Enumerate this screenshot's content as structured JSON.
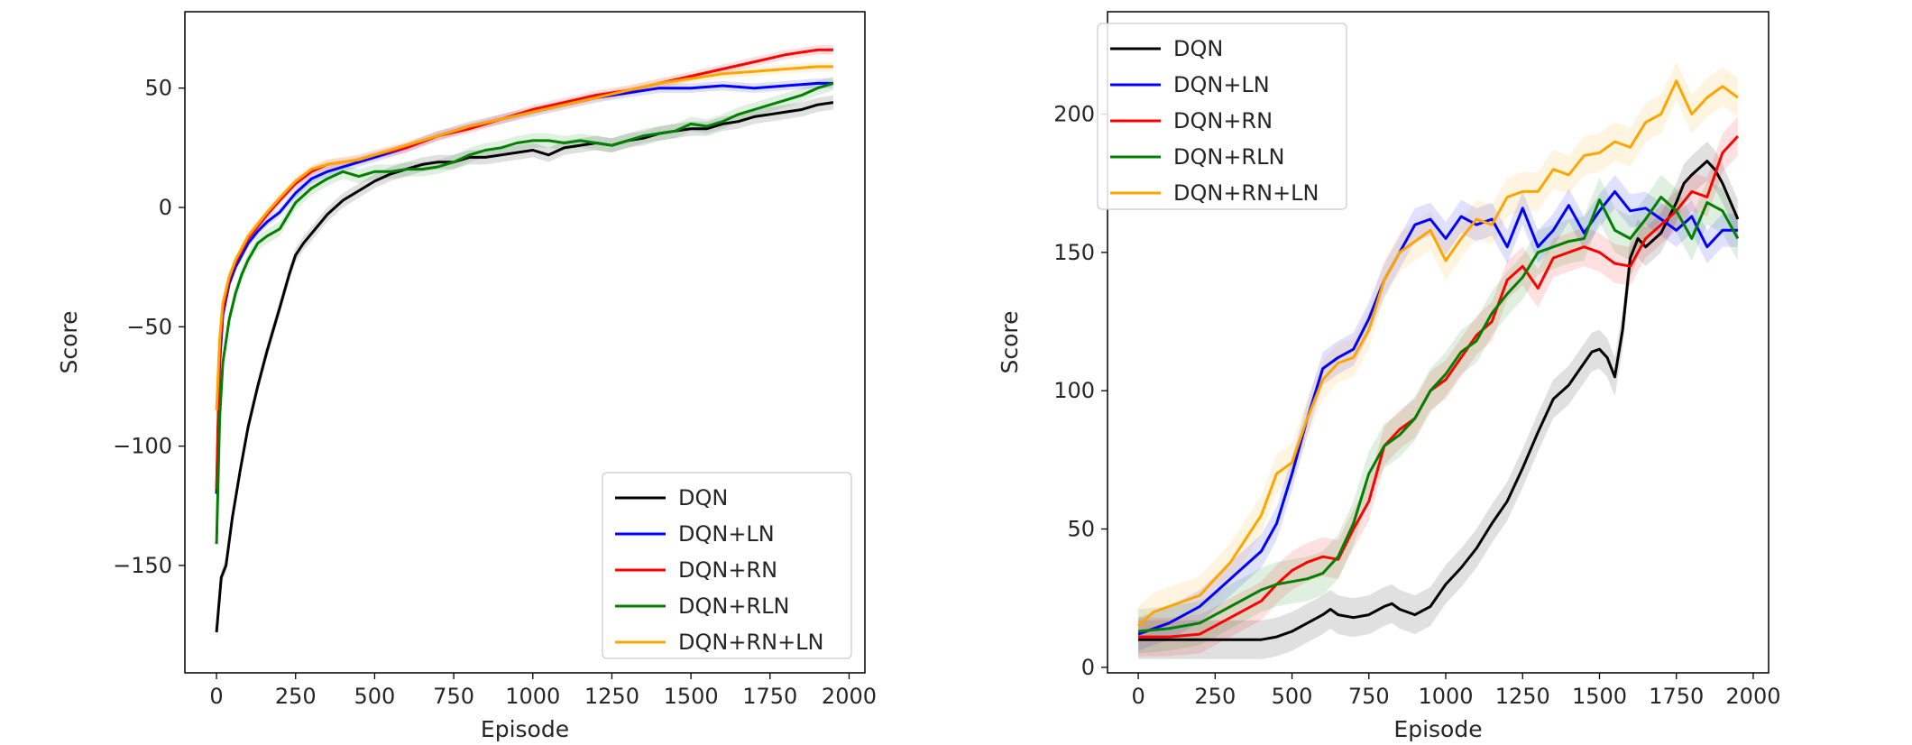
{
  "chart_data": [
    {
      "type": "line",
      "xlabel": "Episode",
      "ylabel": "Score",
      "xlim": [
        -100,
        2050
      ],
      "ylim": [
        -195,
        82
      ],
      "xticks": [
        0,
        250,
        500,
        750,
        1000,
        1250,
        1500,
        1750,
        2000
      ],
      "yticks": [
        -150,
        -100,
        -50,
        0,
        50
      ],
      "xtick_labels": [
        "0",
        "250",
        "500",
        "750",
        "1000",
        "1250",
        "1500",
        "1750",
        "2000"
      ],
      "ytick_labels": [
        "−150",
        "−100",
        "−50",
        "0",
        "50"
      ],
      "legend": {
        "position": "lower-right",
        "entries": [
          "DQN",
          "DQN+LN",
          "DQN+RN",
          "DQN+RLN",
          "DQN+RN+LN"
        ]
      },
      "grid": false,
      "series": [
        {
          "name": "DQN",
          "color": "#000000",
          "band": 3,
          "x": [
            0,
            15,
            30,
            50,
            75,
            100,
            130,
            160,
            200,
            230,
            250,
            275,
            300,
            350,
            400,
            450,
            500,
            550,
            600,
            650,
            700,
            750,
            800,
            850,
            900,
            950,
            1000,
            1050,
            1100,
            1150,
            1200,
            1250,
            1300,
            1350,
            1400,
            1450,
            1500,
            1550,
            1600,
            1650,
            1700,
            1750,
            1800,
            1850,
            1900,
            1950
          ],
          "y": [
            -178,
            -155,
            -150,
            -130,
            -110,
            -92,
            -75,
            -60,
            -42,
            -28,
            -20,
            -15,
            -11,
            -3,
            3,
            7,
            11,
            14,
            16,
            18,
            19,
            19,
            21,
            21,
            22,
            23,
            24,
            22,
            25,
            26,
            27,
            26,
            28,
            29,
            31,
            32,
            33,
            33,
            35,
            36,
            38,
            39,
            40,
            41,
            43,
            44
          ]
        },
        {
          "name": "DQN+LN",
          "color": "#0000ff",
          "band": 2,
          "x": [
            0,
            10,
            20,
            40,
            60,
            80,
            100,
            130,
            160,
            200,
            250,
            300,
            350,
            400,
            450,
            500,
            600,
            700,
            800,
            900,
            1000,
            1100,
            1200,
            1300,
            1400,
            1500,
            1600,
            1700,
            1800,
            1900,
            1950
          ],
          "y": [
            -120,
            -65,
            -45,
            -32,
            -25,
            -20,
            -15,
            -10,
            -6,
            -2,
            6,
            12,
            15,
            17,
            19,
            21,
            25,
            30,
            34,
            37,
            40,
            43,
            46,
            48,
            50,
            50,
            51,
            50,
            51,
            52,
            52
          ]
        },
        {
          "name": "DQN+RN",
          "color": "#ff0000",
          "band": 2,
          "x": [
            0,
            10,
            20,
            40,
            60,
            80,
            100,
            130,
            160,
            200,
            250,
            300,
            350,
            400,
            450,
            500,
            600,
            700,
            800,
            900,
            1000,
            1100,
            1200,
            1300,
            1400,
            1500,
            1600,
            1700,
            1800,
            1900,
            1950
          ],
          "y": [
            -118,
            -60,
            -43,
            -30,
            -23,
            -18,
            -13,
            -8,
            -3,
            3,
            10,
            15,
            18,
            19,
            20,
            22,
            25,
            30,
            33,
            37,
            41,
            44,
            47,
            49,
            52,
            55,
            58,
            61,
            64,
            66,
            66
          ]
        },
        {
          "name": "DQN+RLN",
          "color": "#008000",
          "band": 3,
          "x": [
            0,
            10,
            20,
            40,
            60,
            80,
            100,
            130,
            160,
            200,
            250,
            300,
            350,
            400,
            450,
            500,
            550,
            600,
            650,
            700,
            750,
            800,
            850,
            900,
            950,
            1000,
            1050,
            1100,
            1150,
            1200,
            1250,
            1300,
            1350,
            1400,
            1450,
            1500,
            1550,
            1600,
            1650,
            1700,
            1750,
            1800,
            1850,
            1900,
            1950
          ],
          "y": [
            -141,
            -88,
            -65,
            -47,
            -36,
            -28,
            -22,
            -15,
            -12,
            -9,
            2,
            8,
            12,
            15,
            13,
            15,
            15,
            16,
            16,
            17,
            19,
            22,
            24,
            25,
            27,
            28,
            28,
            27,
            28,
            27,
            26,
            28,
            30,
            31,
            32,
            35,
            34,
            36,
            39,
            41,
            43,
            45,
            47,
            50,
            52
          ]
        },
        {
          "name": "DQN+RN+LN",
          "color": "#ffa500",
          "band": 2,
          "x": [
            0,
            10,
            20,
            40,
            60,
            80,
            100,
            130,
            160,
            200,
            250,
            300,
            350,
            400,
            450,
            500,
            600,
            700,
            800,
            900,
            1000,
            1100,
            1200,
            1300,
            1400,
            1500,
            1600,
            1700,
            1800,
            1900,
            1950
          ],
          "y": [
            -85,
            -55,
            -40,
            -29,
            -22,
            -17,
            -12,
            -7,
            -2,
            4,
            11,
            16,
            18,
            19,
            20,
            22,
            26,
            30,
            34,
            37,
            40,
            43,
            46,
            49,
            52,
            54,
            56,
            57,
            58,
            59,
            59
          ]
        }
      ]
    },
    {
      "type": "line",
      "xlabel": "Episode",
      "ylabel": "Score",
      "xlim": [
        -100,
        2050
      ],
      "ylim": [
        -2,
        237
      ],
      "xticks": [
        0,
        250,
        500,
        750,
        1000,
        1250,
        1500,
        1750,
        2000
      ],
      "yticks": [
        0,
        50,
        100,
        150,
        200
      ],
      "xtick_labels": [
        "0",
        "250",
        "500",
        "750",
        "1000",
        "1250",
        "1500",
        "1750",
        "2000"
      ],
      "ytick_labels": [
        "0",
        "50",
        "100",
        "150",
        "200"
      ],
      "legend": {
        "position": "top-left",
        "entries": [
          "DQN",
          "DQN+LN",
          "DQN+RN",
          "DQN+RLN",
          "DQN+RN+LN"
        ]
      },
      "grid": false,
      "series": [
        {
          "name": "DQN",
          "color": "#000000",
          "band": 7,
          "x": [
            0,
            100,
            200,
            300,
            400,
            450,
            500,
            550,
            600,
            625,
            650,
            700,
            750,
            800,
            825,
            850,
            900,
            950,
            1000,
            1050,
            1100,
            1150,
            1200,
            1250,
            1300,
            1350,
            1400,
            1450,
            1475,
            1500,
            1525,
            1550,
            1575,
            1600,
            1625,
            1650,
            1700,
            1750,
            1775,
            1800,
            1850,
            1875,
            1900,
            1950
          ],
          "y": [
            10,
            10,
            10,
            10,
            10,
            11,
            13,
            16,
            19,
            21,
            19,
            18,
            19,
            22,
            23,
            21,
            19,
            22,
            30,
            36,
            43,
            52,
            60,
            72,
            85,
            97,
            102,
            110,
            114,
            115,
            112,
            105,
            122,
            148,
            155,
            152,
            157,
            168,
            175,
            178,
            183,
            180,
            175,
            162
          ]
        },
        {
          "name": "DQN+LN",
          "color": "#0000ff",
          "band": 6,
          "x": [
            0,
            100,
            200,
            300,
            400,
            450,
            500,
            550,
            600,
            650,
            700,
            750,
            800,
            850,
            900,
            950,
            1000,
            1050,
            1100,
            1150,
            1200,
            1250,
            1300,
            1350,
            1400,
            1450,
            1500,
            1550,
            1600,
            1650,
            1700,
            1750,
            1800,
            1850,
            1900,
            1950
          ],
          "y": [
            12,
            16,
            22,
            32,
            42,
            52,
            70,
            90,
            108,
            112,
            115,
            126,
            140,
            150,
            160,
            162,
            155,
            163,
            160,
            162,
            152,
            166,
            152,
            158,
            167,
            157,
            165,
            172,
            165,
            166,
            162,
            158,
            163,
            152,
            158,
            158
          ]
        },
        {
          "name": "DQN+RN",
          "color": "#ff0000",
          "band": 7,
          "x": [
            0,
            100,
            200,
            300,
            400,
            450,
            500,
            550,
            600,
            650,
            700,
            750,
            800,
            850,
            900,
            950,
            1000,
            1050,
            1100,
            1150,
            1200,
            1250,
            1300,
            1350,
            1400,
            1450,
            1500,
            1550,
            1600,
            1650,
            1700,
            1750,
            1800,
            1850,
            1900,
            1950
          ],
          "y": [
            11,
            11,
            12,
            18,
            24,
            30,
            35,
            38,
            40,
            39,
            50,
            60,
            80,
            86,
            90,
            100,
            104,
            112,
            120,
            125,
            140,
            145,
            137,
            148,
            150,
            152,
            150,
            146,
            145,
            155,
            160,
            165,
            172,
            170,
            186,
            192
          ]
        },
        {
          "name": "DQN+RLN",
          "color": "#008000",
          "band": 8,
          "x": [
            0,
            100,
            200,
            300,
            400,
            450,
            500,
            550,
            600,
            650,
            700,
            750,
            800,
            850,
            900,
            950,
            1000,
            1050,
            1100,
            1150,
            1200,
            1250,
            1300,
            1350,
            1400,
            1450,
            1500,
            1550,
            1600,
            1650,
            1700,
            1750,
            1800,
            1850,
            1900,
            1950
          ],
          "y": [
            13,
            14,
            16,
            22,
            28,
            30,
            31,
            32,
            34,
            40,
            52,
            70,
            80,
            84,
            90,
            100,
            106,
            114,
            118,
            128,
            135,
            141,
            150,
            152,
            154,
            155,
            169,
            158,
            155,
            162,
            170,
            165,
            155,
            168,
            165,
            155
          ]
        },
        {
          "name": "DQN+RN+LN",
          "color": "#ffa500",
          "band": 7,
          "x": [
            0,
            50,
            100,
            200,
            300,
            400,
            450,
            500,
            550,
            600,
            650,
            700,
            750,
            800,
            850,
            900,
            950,
            1000,
            1050,
            1100,
            1150,
            1200,
            1250,
            1300,
            1350,
            1400,
            1450,
            1500,
            1550,
            1600,
            1650,
            1700,
            1750,
            1800,
            1850,
            1900,
            1950
          ],
          "y": [
            15,
            20,
            22,
            26,
            38,
            55,
            70,
            74,
            90,
            104,
            110,
            112,
            122,
            140,
            150,
            154,
            158,
            147,
            155,
            162,
            160,
            170,
            172,
            172,
            180,
            178,
            185,
            186,
            190,
            188,
            197,
            200,
            212,
            200,
            206,
            210,
            206
          ]
        }
      ]
    }
  ]
}
